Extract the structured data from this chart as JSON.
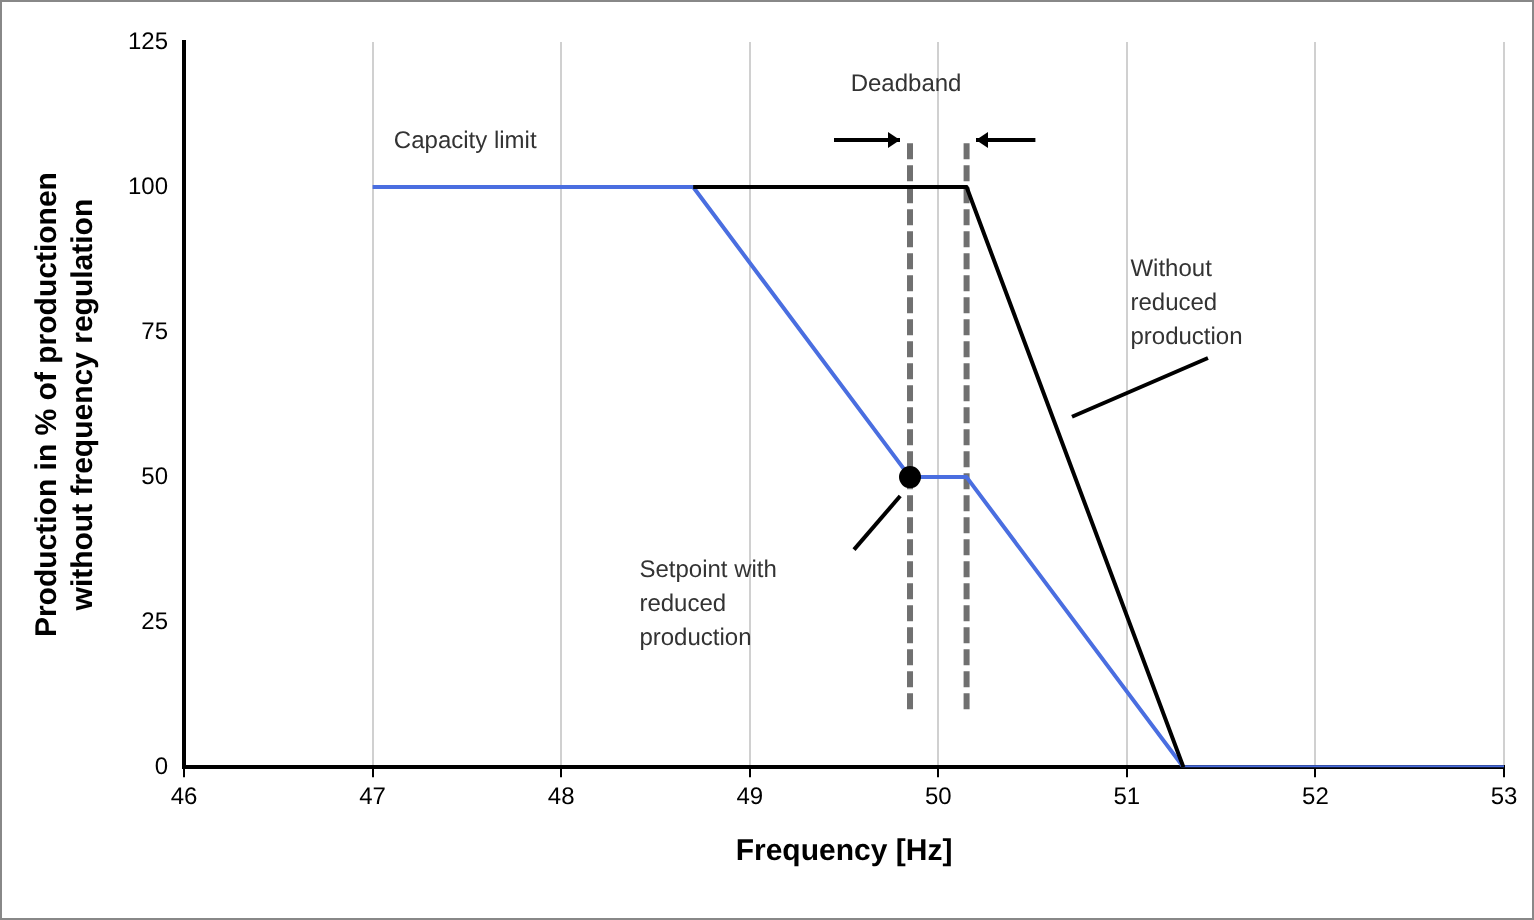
{
  "chart_data": {
    "type": "line",
    "xlabel": "Frequency [Hz]",
    "ylabel": "Production in % of productionen\nwithout frequency regulation",
    "xlim": [
      46,
      53
    ],
    "xticks": [
      46,
      47,
      48,
      49,
      50,
      51,
      52,
      53
    ],
    "ylim": [
      0,
      125
    ],
    "yticks": [
      0,
      25,
      50,
      75,
      100,
      125
    ],
    "grid": "x",
    "legend": false,
    "series": [
      {
        "color": "#000000",
        "x": [
          48.7,
          50.15,
          51.3
        ],
        "values": [
          100,
          100,
          0
        ]
      },
      {
        "color": "#4a6ee0",
        "x": [
          47,
          48.7,
          49.85,
          50.15,
          51.3,
          53
        ],
        "values": [
          100,
          100,
          50,
          50,
          0,
          0
        ]
      },
      {
        "color": "#707070",
        "line_style": "dashed",
        "x": [
          49.85,
          49.85
        ],
        "values": [
          10,
          108
        ]
      },
      {
        "color": "#707070",
        "line_style": "dashed",
        "x": [
          50.15,
          50.15
        ],
        "values": [
          10,
          108
        ]
      },
      {
        "type": "scatter",
        "marker": "circle",
        "color": "#000000",
        "x": [
          49.85
        ],
        "values": [
          50
        ]
      }
    ],
    "annotations": [
      "Capacity limit",
      "Deadband",
      "Without reduced production",
      "Setpoint with reduced production"
    ]
  }
}
